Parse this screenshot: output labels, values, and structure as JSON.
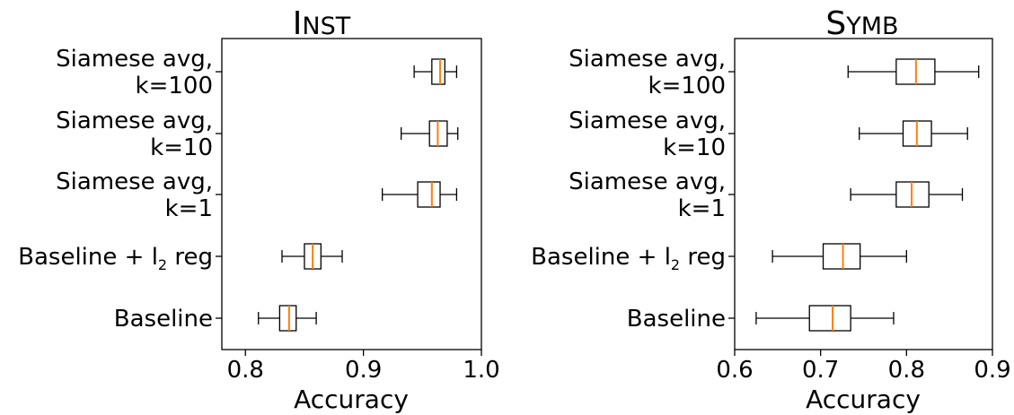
{
  "chart_data": [
    {
      "type": "boxplot",
      "title": "Inst",
      "xlabel": "Accuracy",
      "xlim": [
        0.78,
        1.0
      ],
      "xticks": [
        {
          "value": 0.8,
          "label": "0.8"
        },
        {
          "value": 0.9,
          "label": "0.9"
        },
        {
          "value": 1.0,
          "label": "1.0"
        }
      ],
      "categories": [
        {
          "lines": [
            "Siamese avg,",
            "k=100"
          ]
        },
        {
          "lines": [
            "Siamese avg,",
            "k=10"
          ]
        },
        {
          "lines": [
            "Siamese avg,",
            "k=1"
          ]
        },
        {
          "lines": [
            "Baseline + l",
            "2",
            " reg"
          ],
          "subscript": true
        },
        {
          "lines": [
            "Baseline"
          ]
        }
      ],
      "boxes": [
        {
          "whislo": 0.943,
          "q1": 0.958,
          "med": 0.965,
          "q3": 0.969,
          "whishi": 0.979
        },
        {
          "whislo": 0.932,
          "q1": 0.956,
          "med": 0.963,
          "q3": 0.971,
          "whishi": 0.98
        },
        {
          "whislo": 0.916,
          "q1": 0.946,
          "med": 0.958,
          "q3": 0.965,
          "whishi": 0.979
        },
        {
          "whislo": 0.831,
          "q1": 0.85,
          "med": 0.857,
          "q3": 0.864,
          "whishi": 0.882
        },
        {
          "whislo": 0.811,
          "q1": 0.829,
          "med": 0.837,
          "q3": 0.843,
          "whishi": 0.86
        }
      ]
    },
    {
      "type": "boxplot",
      "title": "Symb",
      "xlabel": "Accuracy",
      "xlim": [
        0.6,
        0.9
      ],
      "xticks": [
        {
          "value": 0.6,
          "label": "0.6"
        },
        {
          "value": 0.7,
          "label": "0.7"
        },
        {
          "value": 0.8,
          "label": "0.8"
        },
        {
          "value": 0.9,
          "label": "0.9"
        }
      ],
      "categories": [
        {
          "lines": [
            "Siamese avg,",
            "k=100"
          ]
        },
        {
          "lines": [
            "Siamese avg,",
            "k=10"
          ]
        },
        {
          "lines": [
            "Siamese avg,",
            "k=1"
          ]
        },
        {
          "lines": [
            "Baseline + l",
            "2",
            " reg"
          ],
          "subscript": true
        },
        {
          "lines": [
            "Baseline"
          ]
        }
      ],
      "boxes": [
        {
          "whislo": 0.732,
          "q1": 0.788,
          "med": 0.811,
          "q3": 0.833,
          "whishi": 0.884
        },
        {
          "whislo": 0.745,
          "q1": 0.796,
          "med": 0.812,
          "q3": 0.829,
          "whishi": 0.871
        },
        {
          "whislo": 0.735,
          "q1": 0.788,
          "med": 0.806,
          "q3": 0.826,
          "whishi": 0.865
        },
        {
          "whislo": 0.644,
          "q1": 0.703,
          "med": 0.726,
          "q3": 0.746,
          "whishi": 0.8
        },
        {
          "whislo": 0.625,
          "q1": 0.687,
          "med": 0.714,
          "q3": 0.735,
          "whishi": 0.785
        }
      ]
    }
  ]
}
